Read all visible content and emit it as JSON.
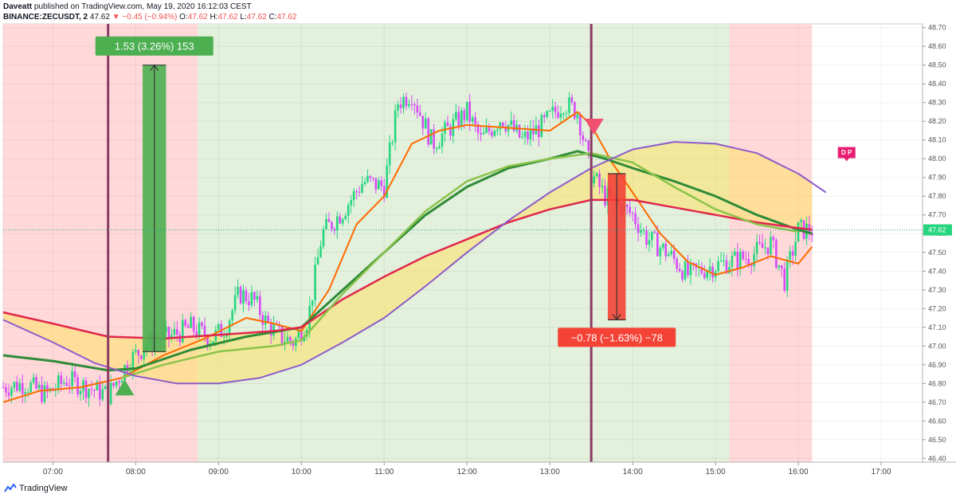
{
  "header": {
    "author": "Daveatt",
    "published_text": "published on TradingView.com, May 19, 2020 16:12:03 CEST",
    "symbol": "BINANCE:ZECUSDT, 2",
    "last": "47.62",
    "change": "▼ −0.45 (−0.94%)",
    "ohlc_prefix": {
      "o": "O:",
      "h": "H:",
      "l": "L:",
      "c": "C:"
    },
    "ohlc": {
      "o": "47.62",
      "h": "47.62",
      "l": "47.62",
      "c": "47.62"
    }
  },
  "footer": {
    "brand": "TradingView"
  },
  "colors": {
    "up": "#26d67e",
    "down": "#d64cf5",
    "ema_fast": "#ff6a00",
    "ema_green": "#2e8b37",
    "ema_lightgreen": "#8bc34a",
    "ema_red": "#e0274b",
    "curve_purple": "#8e5bc9",
    "cloud": "#ffe266",
    "bg_red": "#ffd9d9",
    "bg_green": "#e2f0dc",
    "vline": "#8b3a62",
    "measure_up": "#4caf50",
    "measure_down": "#f44336"
  },
  "chart_data": {
    "type": "candlestick",
    "title": "",
    "xlabel": "",
    "ylabel": "",
    "x_ticks": [
      "07:00",
      "08:00",
      "09:00",
      "10:00",
      "11:00",
      "12:00",
      "13:00",
      "14:00",
      "15:00",
      "16:00",
      "17:00"
    ],
    "y_ticks": [
      "46.40",
      "46.50",
      "46.60",
      "46.70",
      "46.80",
      "46.90",
      "47.00",
      "47.10",
      "47.20",
      "47.30",
      "47.40",
      "47.50",
      "47.60",
      "47.70",
      "47.80",
      "47.90",
      "48.00",
      "48.10",
      "48.20",
      "48.30",
      "48.40",
      "48.50",
      "48.60",
      "48.70"
    ],
    "ylim": [
      46.38,
      48.72
    ],
    "xlim": [
      "06:24",
      "17:30"
    ],
    "last_price_label": "47.62",
    "close_path": [
      [
        "06:24",
        46.78
      ],
      [
        "06:40",
        46.8
      ],
      [
        "06:55",
        46.74
      ],
      [
        "07:10",
        46.82
      ],
      [
        "07:25",
        46.78
      ],
      [
        "07:40",
        46.74
      ],
      [
        "07:55",
        46.92
      ],
      [
        "08:10",
        47.02
      ],
      [
        "08:25",
        47.05
      ],
      [
        "08:40",
        47.1
      ],
      [
        "08:55",
        47.04
      ],
      [
        "09:05",
        47.1
      ],
      [
        "09:15",
        47.28
      ],
      [
        "09:25",
        47.25
      ],
      [
        "09:35",
        47.12
      ],
      [
        "09:45",
        47.05
      ],
      [
        "09:55",
        47.02
      ],
      [
        "10:05",
        47.15
      ],
      [
        "10:15",
        47.6
      ],
      [
        "10:30",
        47.72
      ],
      [
        "10:45",
        47.88
      ],
      [
        "11:00",
        47.85
      ],
      [
        "11:10",
        48.3
      ],
      [
        "11:20",
        48.35
      ],
      [
        "11:35",
        48.08
      ],
      [
        "11:50",
        48.18
      ],
      [
        "12:00",
        48.25
      ],
      [
        "12:10",
        48.1
      ],
      [
        "12:25",
        48.22
      ],
      [
        "12:40",
        48.1
      ],
      [
        "12:55",
        48.18
      ],
      [
        "13:10",
        48.3
      ],
      [
        "13:20",
        48.25
      ],
      [
        "13:30",
        47.92
      ],
      [
        "13:40",
        47.8
      ],
      [
        "13:50",
        47.75
      ],
      [
        "14:00",
        47.7
      ],
      [
        "14:10",
        47.58
      ],
      [
        "14:25",
        47.5
      ],
      [
        "14:40",
        47.38
      ],
      [
        "14:55",
        47.42
      ],
      [
        "15:10",
        47.45
      ],
      [
        "15:25",
        47.48
      ],
      [
        "15:40",
        47.55
      ],
      [
        "15:50",
        47.35
      ],
      [
        "16:00",
        47.62
      ],
      [
        "16:10",
        47.62
      ]
    ],
    "series": [
      {
        "name": "",
        "kind": "ema-orange",
        "points": [
          [
            "06:24",
            46.7
          ],
          [
            "06:50",
            46.76
          ],
          [
            "07:20",
            46.78
          ],
          [
            "07:50",
            46.83
          ],
          [
            "08:20",
            46.95
          ],
          [
            "08:50",
            47.04
          ],
          [
            "09:20",
            47.15
          ],
          [
            "09:40",
            47.12
          ],
          [
            "10:00",
            47.08
          ],
          [
            "10:20",
            47.3
          ],
          [
            "10:40",
            47.65
          ],
          [
            "11:00",
            47.8
          ],
          [
            "11:20",
            48.08
          ],
          [
            "11:40",
            48.15
          ],
          [
            "12:00",
            48.18
          ],
          [
            "12:20",
            48.17
          ],
          [
            "12:40",
            48.16
          ],
          [
            "13:00",
            48.15
          ],
          [
            "13:20",
            48.25
          ],
          [
            "13:30",
            48.18
          ],
          [
            "13:45",
            47.98
          ],
          [
            "14:00",
            47.82
          ],
          [
            "14:20",
            47.6
          ],
          [
            "14:40",
            47.45
          ],
          [
            "15:00",
            47.38
          ],
          [
            "15:20",
            47.42
          ],
          [
            "15:40",
            47.48
          ],
          [
            "16:00",
            47.44
          ],
          [
            "16:10",
            47.53
          ]
        ]
      },
      {
        "name": "",
        "kind": "ema-green",
        "points": [
          [
            "06:24",
            46.95
          ],
          [
            "07:00",
            46.92
          ],
          [
            "07:40",
            46.87
          ],
          [
            "08:00",
            46.88
          ],
          [
            "08:40",
            46.98
          ],
          [
            "09:20",
            47.05
          ],
          [
            "10:00",
            47.1
          ],
          [
            "10:30",
            47.3
          ],
          [
            "11:00",
            47.5
          ],
          [
            "11:30",
            47.7
          ],
          [
            "12:00",
            47.85
          ],
          [
            "12:30",
            47.95
          ],
          [
            "13:00",
            48.0
          ],
          [
            "13:20",
            48.04
          ],
          [
            "13:40",
            48.0
          ],
          [
            "14:00",
            47.95
          ],
          [
            "14:30",
            47.88
          ],
          [
            "15:00",
            47.8
          ],
          [
            "15:30",
            47.7
          ],
          [
            "16:00",
            47.62
          ],
          [
            "16:10",
            47.6
          ]
        ]
      },
      {
        "name": "",
        "kind": "ema-red",
        "points": [
          [
            "06:24",
            47.18
          ],
          [
            "07:00",
            47.12
          ],
          [
            "07:40",
            47.05
          ],
          [
            "08:20",
            47.04
          ],
          [
            "09:00",
            47.06
          ],
          [
            "09:40",
            47.08
          ],
          [
            "10:00",
            47.1
          ],
          [
            "10:30",
            47.25
          ],
          [
            "11:00",
            47.37
          ],
          [
            "11:30",
            47.48
          ],
          [
            "12:00",
            47.57
          ],
          [
            "12:30",
            47.66
          ],
          [
            "13:00",
            47.73
          ],
          [
            "13:30",
            47.78
          ],
          [
            "14:00",
            47.78
          ],
          [
            "14:30",
            47.74
          ],
          [
            "15:00",
            47.7
          ],
          [
            "15:30",
            47.66
          ],
          [
            "16:00",
            47.63
          ],
          [
            "16:10",
            47.62
          ]
        ]
      },
      {
        "name": "",
        "kind": "ema-lightgreen",
        "points": [
          [
            "07:50",
            46.83
          ],
          [
            "08:20",
            46.9
          ],
          [
            "09:00",
            46.97
          ],
          [
            "09:40",
            47.0
          ],
          [
            "10:00",
            47.03
          ],
          [
            "10:30",
            47.28
          ],
          [
            "11:00",
            47.5
          ],
          [
            "11:30",
            47.72
          ],
          [
            "12:00",
            47.88
          ],
          [
            "12:30",
            47.96
          ],
          [
            "13:00",
            48.0
          ],
          [
            "13:30",
            48.03
          ],
          [
            "14:00",
            47.98
          ],
          [
            "14:30",
            47.85
          ],
          [
            "15:00",
            47.73
          ],
          [
            "15:30",
            47.65
          ],
          [
            "16:00",
            47.61
          ]
        ]
      },
      {
        "name": "",
        "kind": "curve-purple",
        "points": [
          [
            "06:24",
            47.14
          ],
          [
            "07:00",
            47.02
          ],
          [
            "07:30",
            46.91
          ],
          [
            "08:00",
            46.84
          ],
          [
            "08:30",
            46.8
          ],
          [
            "09:00",
            46.8
          ],
          [
            "09:30",
            46.83
          ],
          [
            "10:00",
            46.9
          ],
          [
            "10:30",
            47.02
          ],
          [
            "11:00",
            47.15
          ],
          [
            "11:30",
            47.32
          ],
          [
            "12:00",
            47.5
          ],
          [
            "12:30",
            47.67
          ],
          [
            "13:00",
            47.82
          ],
          [
            "13:30",
            47.95
          ],
          [
            "14:00",
            48.05
          ],
          [
            "14:30",
            48.09
          ],
          [
            "15:00",
            48.08
          ],
          [
            "15:30",
            48.03
          ],
          [
            "16:00",
            47.92
          ],
          [
            "16:20",
            47.82
          ]
        ]
      }
    ],
    "background_zones": [
      {
        "from": "06:24",
        "to": "08:45",
        "tone": "red"
      },
      {
        "from": "08:45",
        "to": "15:10",
        "tone": "green"
      },
      {
        "from": "15:10",
        "to": "16:10",
        "tone": "red"
      }
    ],
    "vertical_lines": [
      "07:40",
      "13:30"
    ],
    "signals": [
      {
        "type": "buy",
        "time": "07:52",
        "price": 46.83
      },
      {
        "type": "sell",
        "time": "13:32",
        "price": 48.12
      }
    ],
    "measures": [
      {
        "label": "1.53 (3.26%) 153",
        "from_time": "08:05",
        "to_time": "08:22",
        "from_price": 46.97,
        "to_price": 48.5,
        "tone": "up"
      },
      {
        "label": "−0.78 (−1.63%) −78",
        "from_time": "13:42",
        "to_time": "13:55",
        "from_price": 47.92,
        "to_price": 47.14,
        "tone": "down"
      }
    ],
    "marker_dp": {
      "label": "D P",
      "time": "16:35",
      "price": 48.02
    }
  }
}
